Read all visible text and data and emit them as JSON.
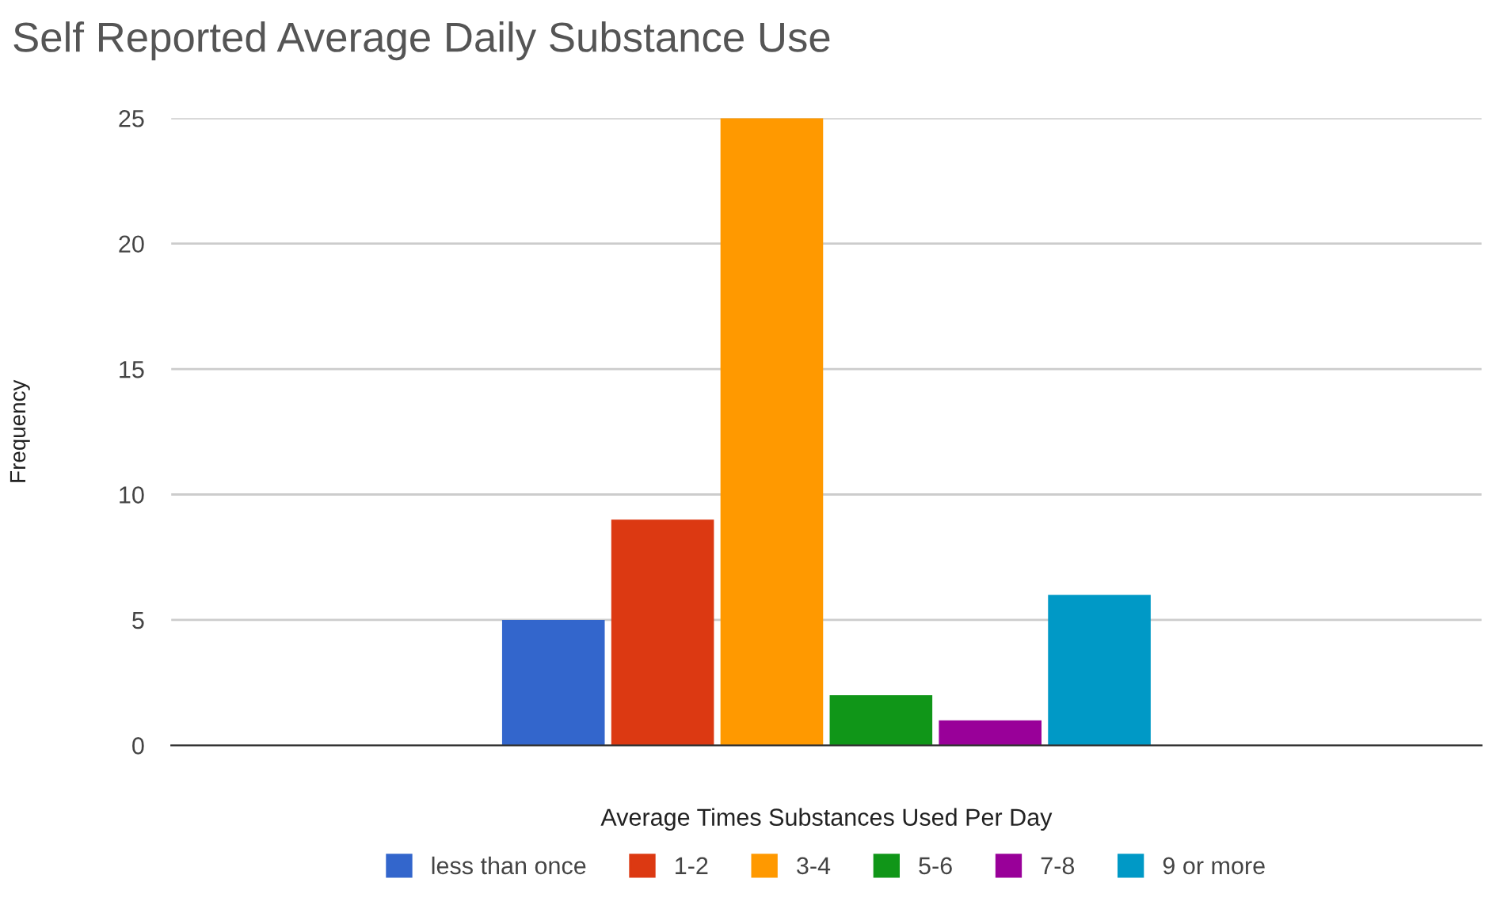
{
  "chart_data": {
    "type": "bar",
    "title": "Self Reported Average Daily Substance Use",
    "xlabel": "Average Times Substances Used Per Day",
    "ylabel": "Frequency",
    "categories": [
      null
    ],
    "series": [
      {
        "name": "less than once",
        "color": "#3366cc",
        "values": [
          5
        ]
      },
      {
        "name": "1-2",
        "color": "#dc3912",
        "values": [
          9
        ]
      },
      {
        "name": "3-4",
        "color": "#ff9900",
        "values": [
          25
        ]
      },
      {
        "name": "5-6",
        "color": "#109618",
        "values": [
          2
        ]
      },
      {
        "name": "7-8",
        "color": "#990099",
        "values": [
          1
        ]
      },
      {
        "name": "9 or more",
        "color": "#0099c6",
        "values": [
          6
        ]
      }
    ],
    "ylim": [
      0,
      25
    ],
    "yticks": [
      0,
      5,
      10,
      15,
      20,
      25
    ],
    "grid": "y",
    "legend": "bottom"
  }
}
